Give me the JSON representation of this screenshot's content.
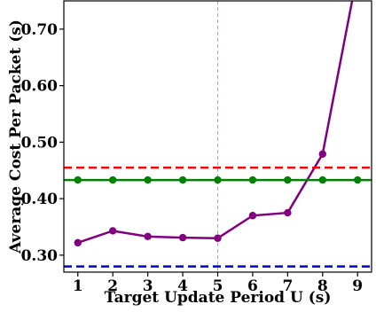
{
  "chart_data": {
    "type": "line",
    "title": "",
    "xlabel": "Target Update Period U (s)",
    "ylabel": "Average Cost Per Packet (s)",
    "xlim": [
      0.6,
      9.4
    ],
    "ylim": [
      0.27,
      0.75
    ],
    "xticks": [
      "1",
      "2",
      "3",
      "4",
      "5",
      "6",
      "7",
      "8",
      "9"
    ],
    "yticks": [
      "0.30",
      "0.40",
      "0.50",
      "0.60",
      "0.70"
    ],
    "grid": false,
    "legend": "none",
    "x": [
      1,
      2,
      3,
      4,
      5,
      6,
      7,
      8,
      9
    ],
    "series": [
      {
        "style": "solid",
        "marker": "circle",
        "color": "#800080",
        "values": [
          0.322,
          0.343,
          0.333,
          0.331,
          0.33,
          0.37,
          0.375,
          0.479,
          0.8
        ]
      },
      {
        "style": "solid",
        "marker": "circle",
        "color": "#008000",
        "values": [
          0.433,
          0.433,
          0.433,
          0.433,
          0.433,
          0.433,
          0.433,
          0.433,
          0.433
        ],
        "extends_full_width": true
      },
      {
        "style": "dashed",
        "color": "#ff0000",
        "hline": 0.455
      },
      {
        "style": "dashed",
        "color": "#0000cc",
        "hline": 0.28
      }
    ],
    "vline": {
      "x": 5,
      "style": "dashed",
      "color": "#8fb3c9"
    }
  }
}
